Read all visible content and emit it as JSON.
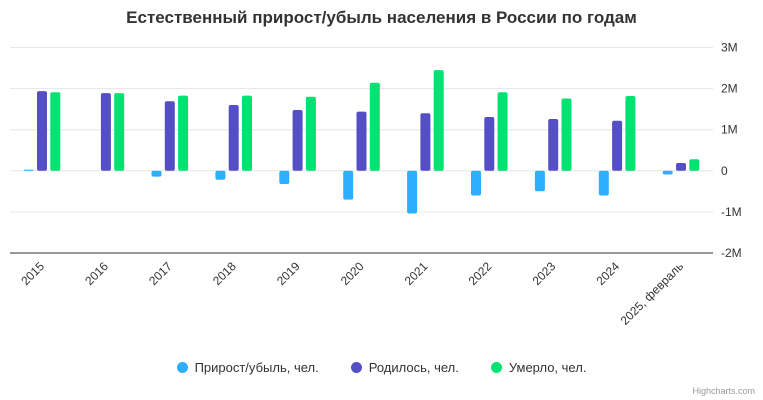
{
  "credits": "Highcharts.com",
  "colors": {
    "grid": "#e6e6e6",
    "axis_line": "#333333",
    "axis_label": "#333333",
    "title_color": "#333333",
    "legend_label": "#333333",
    "credits_color": "#999999",
    "background": "#ffffff"
  },
  "chart_data": {
    "type": "bar",
    "title": "Естественный прирост/убыль населения в России по годам",
    "xlabel": "",
    "ylabel": "",
    "ylim": [
      -2,
      3
    ],
    "grid": true,
    "legend_position": "bottom",
    "units": "millions of people",
    "categories": [
      "2015",
      "2016",
      "2017",
      "2018",
      "2019",
      "2020",
      "2021",
      "2022",
      "2023",
      "2024",
      "2025, февраль"
    ],
    "yticks": [
      {
        "value": 3,
        "label": "3M"
      },
      {
        "value": 2,
        "label": "2M"
      },
      {
        "value": 1,
        "label": "1M"
      },
      {
        "value": 0,
        "label": "0"
      },
      {
        "value": -1,
        "label": "-1M"
      },
      {
        "value": -2,
        "label": "-2M"
      }
    ],
    "series": [
      {
        "name": "Прирост/убыль, чел.",
        "color": "#2CAFFE",
        "values_millions": [
          0.03,
          0,
          -0.14,
          -0.22,
          -0.32,
          -0.7,
          -1.04,
          -0.6,
          -0.5,
          -0.6,
          -0.09
        ]
      },
      {
        "name": "Родилось, чел.",
        "color": "#544FC5",
        "values_millions": [
          1.94,
          1.89,
          1.69,
          1.6,
          1.48,
          1.44,
          1.4,
          1.31,
          1.26,
          1.22,
          0.19
        ]
      },
      {
        "name": "Умерло, чел.",
        "color": "#00E272",
        "values_millions": [
          1.91,
          1.89,
          1.83,
          1.83,
          1.8,
          2.14,
          2.45,
          1.91,
          1.76,
          1.82,
          0.28
        ]
      }
    ]
  }
}
